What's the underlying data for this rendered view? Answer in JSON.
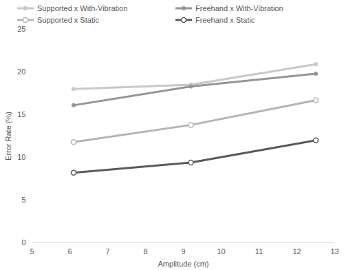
{
  "chart_data": {
    "type": "line",
    "x_label": "Amplitude (cm)",
    "y_label": "Error Rate (%)",
    "x": [
      6.1,
      9.2,
      12.5
    ],
    "series": [
      {
        "name": "Supported x With-Vibration",
        "color": "#c8c8c8",
        "marker": "dot",
        "values": [
          18.0,
          18.5,
          20.9
        ]
      },
      {
        "name": "Freehand x With-Vibration",
        "color": "#959595",
        "marker": "dot",
        "values": [
          16.1,
          18.3,
          19.8
        ]
      },
      {
        "name": "Supported x Static",
        "color": "#b4b4b4",
        "marker": "circle",
        "values": [
          11.8,
          13.8,
          16.7
        ]
      },
      {
        "name": "Freehand x Static",
        "color": "#5a5a5a",
        "marker": "circle",
        "values": [
          8.2,
          9.4,
          12.0
        ]
      }
    ],
    "xlim": [
      5,
      13
    ],
    "xticks": [
      5,
      6,
      7,
      8,
      9,
      10,
      11,
      12,
      13
    ],
    "ylim": [
      0,
      25
    ],
    "yticks": [
      0,
      5,
      10,
      15,
      20,
      25
    ],
    "grid": false,
    "legend": "top"
  }
}
